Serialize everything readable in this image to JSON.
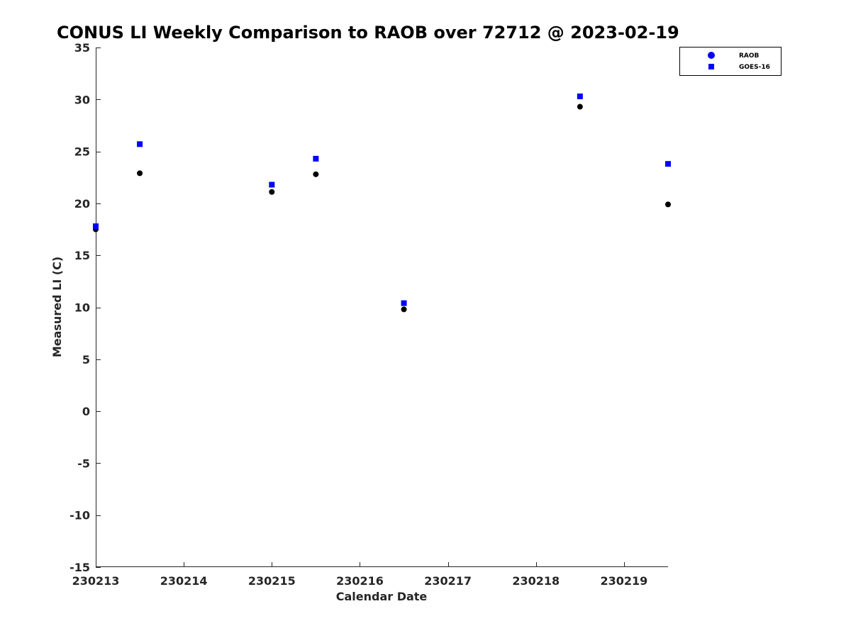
{
  "chart_data": {
    "type": "scatter",
    "title": "CONUS LI Weekly Comparison to RAOB over 72712 @ 2023-02-19",
    "xlabel": "Calendar Date",
    "ylabel": "Measured LI (C)",
    "xlim": [
      0,
      6.5
    ],
    "ylim": [
      -15,
      35
    ],
    "x_ticks": [
      0,
      1,
      2,
      3,
      4,
      5,
      6
    ],
    "x_tick_labels": [
      "230213",
      "230214",
      "230215",
      "230216",
      "230217",
      "230218",
      "230219"
    ],
    "y_ticks": [
      -15,
      -10,
      -5,
      0,
      5,
      10,
      15,
      20,
      25,
      30,
      35
    ],
    "grid": false,
    "legend_position": "top-right",
    "series": [
      {
        "name": "RAOB",
        "marker": "circle",
        "color": "#000000",
        "legend_color": "#0000ff",
        "points": [
          {
            "x": 0.0,
            "y": 17.5
          },
          {
            "x": 0.5,
            "y": 22.9
          },
          {
            "x": 2.0,
            "y": 21.1
          },
          {
            "x": 2.5,
            "y": 22.8
          },
          {
            "x": 3.5,
            "y": 9.8
          },
          {
            "x": 5.5,
            "y": 29.3
          },
          {
            "x": 6.5,
            "y": 19.9
          }
        ]
      },
      {
        "name": "GOES-16",
        "marker": "square",
        "color": "#0000ff",
        "legend_color": "#0000ff",
        "points": [
          {
            "x": 0.0,
            "y": 17.8
          },
          {
            "x": 0.5,
            "y": 25.7
          },
          {
            "x": 2.0,
            "y": 21.8
          },
          {
            "x": 2.5,
            "y": 24.3
          },
          {
            "x": 3.5,
            "y": 10.4
          },
          {
            "x": 5.5,
            "y": 30.3
          },
          {
            "x": 6.5,
            "y": 23.8
          }
        ]
      }
    ]
  }
}
